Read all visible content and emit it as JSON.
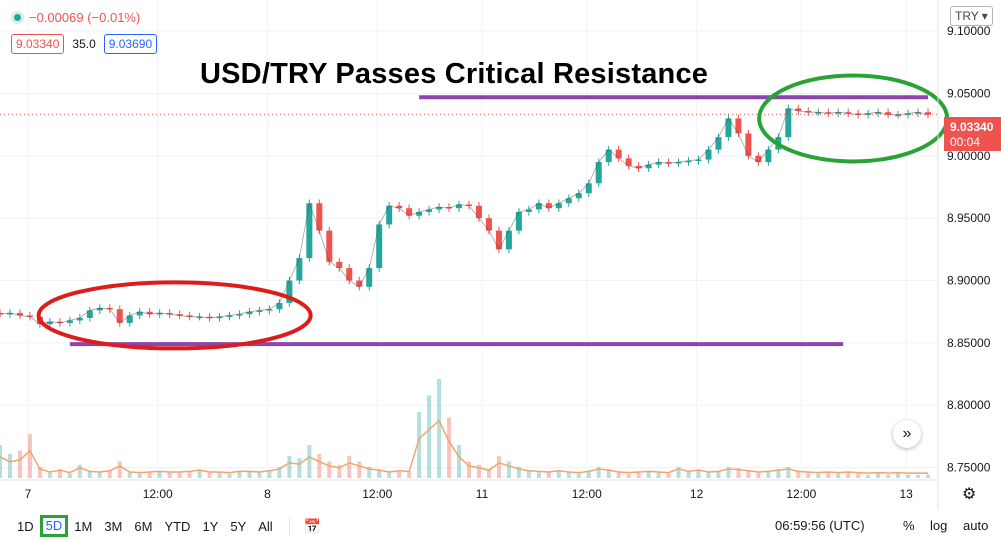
{
  "header": {
    "change": "−0.00069 (−0.01%)",
    "bid": "9.03340",
    "spread": "35.0",
    "ask": "9.03690",
    "currency": "TRY"
  },
  "title": "USD/TRY Passes Critical Resistance",
  "price_tag": {
    "price": "9.03340",
    "countdown": "00:04"
  },
  "colors": {
    "up": "#26a69a",
    "down": "#ef5350",
    "support_resistance_line": "#8e44ad",
    "red_ellipse": "#dd1c1c",
    "green_ellipse": "#2aa336",
    "volume_ma": "#f4a46a",
    "selected_range": "#2aa336"
  },
  "bottom_bar": {
    "ranges": [
      "1D",
      "5D",
      "1M",
      "3M",
      "6M",
      "YTD",
      "1Y",
      "5Y",
      "All"
    ],
    "selected": "5D",
    "time": "06:59:56 (UTC)",
    "percent": "%",
    "log": "log",
    "auto": "auto"
  },
  "icons": {
    "header_dot": "status-dot-icon",
    "calendar": "calendar-range-icon",
    "settings": "gear-icon",
    "scroll": "double-chevron-right-icon",
    "currency_dropdown": "chevron-down-icon"
  },
  "chart_data": {
    "type": "candlestick",
    "symbol": "USD/TRY",
    "interval_range": "5D",
    "ylim": [
      8.74,
      9.125
    ],
    "y_ticks": [
      "9.10000",
      "9.05000",
      "9.00000",
      "8.95000",
      "8.90000",
      "8.85000",
      "8.80000",
      "8.75000"
    ],
    "x_ticks": [
      "7",
      "12:00",
      "8",
      "12:00",
      "11",
      "12:00",
      "12",
      "12:00",
      "13"
    ],
    "x": [
      0,
      10,
      20,
      30,
      40,
      50,
      60,
      70,
      80,
      90,
      100,
      110,
      120,
      130,
      140,
      150,
      160,
      170,
      180,
      190,
      200,
      210,
      220,
      230,
      240,
      250,
      260,
      270,
      280,
      290,
      300,
      310,
      320,
      330,
      340,
      350,
      360,
      370,
      380,
      390,
      400,
      410,
      420,
      430,
      440,
      450,
      460,
      470,
      480,
      490,
      500,
      510,
      520,
      530,
      540,
      550,
      560,
      570,
      580,
      590,
      600,
      610,
      620,
      630,
      640,
      650,
      660,
      670,
      680,
      690,
      700,
      710,
      720,
      730,
      740,
      750,
      760,
      770,
      780,
      790,
      800,
      810,
      820,
      830,
      840,
      850,
      860,
      870,
      880,
      890,
      900,
      910,
      920,
      930
    ],
    "close": [
      8.873,
      8.874,
      8.872,
      8.871,
      8.865,
      8.867,
      8.866,
      8.868,
      8.87,
      8.876,
      8.878,
      8.877,
      8.866,
      8.872,
      8.875,
      8.873,
      8.874,
      8.873,
      8.872,
      8.871,
      8.871,
      8.87,
      8.871,
      8.872,
      8.873,
      8.875,
      8.876,
      8.877,
      8.882,
      8.9,
      8.918,
      8.962,
      8.94,
      8.915,
      8.91,
      8.9,
      8.895,
      8.91,
      8.945,
      8.96,
      8.958,
      8.952,
      8.955,
      8.957,
      8.959,
      8.958,
      8.961,
      8.96,
      8.95,
      8.94,
      8.925,
      8.94,
      8.955,
      8.957,
      8.962,
      8.958,
      8.962,
      8.966,
      8.97,
      8.978,
      8.995,
      9.005,
      8.998,
      8.992,
      8.99,
      8.993,
      8.995,
      8.994,
      8.995,
      8.996,
      8.997,
      9.005,
      9.015,
      9.03,
      9.018,
      9.0,
      8.995,
      9.005,
      9.015,
      9.038,
      9.036,
      9.035,
      9.035,
      9.034,
      9.035,
      9.034,
      9.033,
      9.034,
      9.035,
      9.033,
      9.033,
      9.034,
      9.035,
      9.033
    ],
    "volume": [
      0.3,
      0.22,
      0.25,
      0.4,
      0.1,
      0.05,
      0.08,
      0.04,
      0.12,
      0.06,
      0.05,
      0.07,
      0.15,
      0.05,
      0.04,
      0.05,
      0.06,
      0.05,
      0.05,
      0.06,
      0.08,
      0.05,
      0.05,
      0.04,
      0.06,
      0.06,
      0.05,
      0.07,
      0.1,
      0.2,
      0.18,
      0.3,
      0.22,
      0.15,
      0.12,
      0.2,
      0.15,
      0.1,
      0.08,
      0.05,
      0.07,
      0.06,
      0.6,
      0.75,
      0.9,
      0.55,
      0.3,
      0.15,
      0.12,
      0.08,
      0.2,
      0.15,
      0.1,
      0.07,
      0.06,
      0.05,
      0.07,
      0.05,
      0.04,
      0.06,
      0.1,
      0.08,
      0.05,
      0.04,
      0.05,
      0.06,
      0.05,
      0.04,
      0.1,
      0.06,
      0.08,
      0.05,
      0.06,
      0.1,
      0.09,
      0.07,
      0.05,
      0.06,
      0.08,
      0.1,
      0.06,
      0.05,
      0.04,
      0.05,
      0.04,
      0.05,
      0.04,
      0.03,
      0.04,
      0.03,
      0.04,
      0.03,
      0.03,
      0.03
    ],
    "current_price": 9.0334,
    "annotations": {
      "resistance_line": {
        "y": 9.047,
        "x_from": 420,
        "x_to": 930
      },
      "support_line": {
        "y": 8.849,
        "x_from": 70,
        "x_to": 845
      },
      "red_ellipse": {
        "x_center": 175,
        "y_center": 8.872
      },
      "green_ellipse": {
        "x_center": 855,
        "y_center": 9.03
      }
    }
  }
}
